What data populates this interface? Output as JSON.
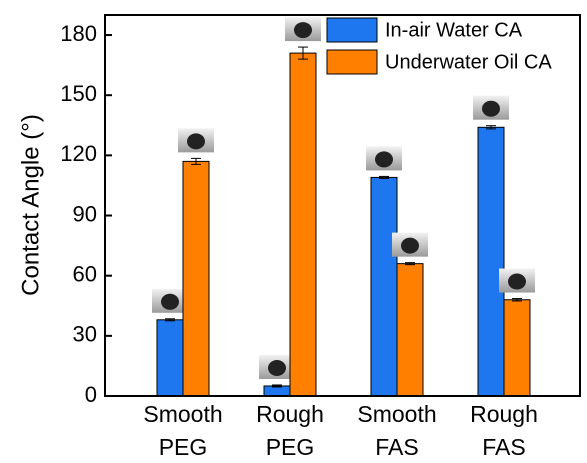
{
  "chart_data": {
    "type": "bar",
    "y_label": "Contact Angle (°)",
    "categories": [
      "Smooth\nPEG",
      "Rough\nPEG",
      "Smooth\nFAS",
      "Rough\nFAS"
    ],
    "series": [
      {
        "name": "In-air Water CA",
        "color": "#1f77f0",
        "values": [
          38,
          5,
          109,
          134
        ],
        "errors": [
          0.5,
          0.5,
          0.5,
          0.8
        ]
      },
      {
        "name": "Underwater Oil CA",
        "color": "#ff8000",
        "values": [
          117,
          171,
          66,
          48
        ],
        "errors": [
          1.5,
          3,
          0.5,
          0.6
        ]
      }
    ],
    "ylim": [
      0,
      190
    ],
    "yticks": [
      0,
      30,
      60,
      90,
      120,
      150,
      180
    ],
    "legend": "top-right"
  }
}
